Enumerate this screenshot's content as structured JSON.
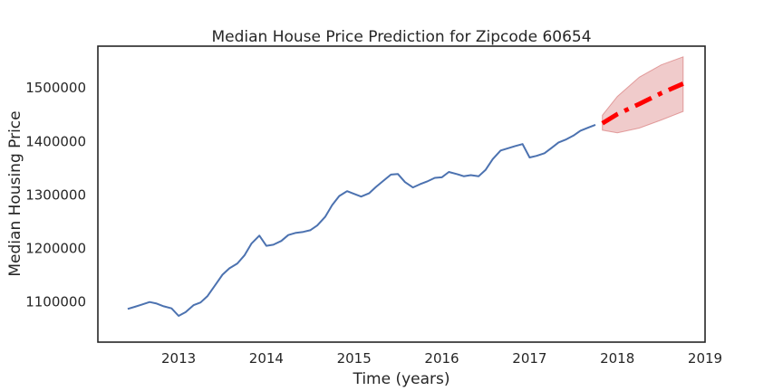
{
  "chart_data": {
    "type": "line",
    "title": "Median House Price Prediction for Zipcode 60654",
    "xlabel": "Time (years)",
    "ylabel": "Median Housing Price",
    "xlim": [
      2012.08,
      2019.0
    ],
    "ylim": [
      1025000,
      1578000
    ],
    "x_ticks": [
      {
        "value": 2013,
        "label": "2013"
      },
      {
        "value": 2014,
        "label": "2014"
      },
      {
        "value": 2015,
        "label": "2015"
      },
      {
        "value": 2016,
        "label": "2016"
      },
      {
        "value": 2017,
        "label": "2017"
      },
      {
        "value": 2018,
        "label": "2018"
      },
      {
        "value": 2019,
        "label": "2019"
      }
    ],
    "y_ticks": [
      {
        "value": 1100000,
        "label": "1100000"
      },
      {
        "value": 1200000,
        "label": "1200000"
      },
      {
        "value": 1300000,
        "label": "1300000"
      },
      {
        "value": 1400000,
        "label": "1400000"
      },
      {
        "value": 1500000,
        "label": "1500000"
      }
    ],
    "grid": false,
    "series": [
      {
        "role": "observed",
        "color": "#4c72b0",
        "style": "solid",
        "x": [
          2012.42,
          2012.5,
          2012.58,
          2012.67,
          2012.75,
          2012.83,
          2012.92,
          2013.0,
          2013.08,
          2013.17,
          2013.25,
          2013.33,
          2013.42,
          2013.5,
          2013.58,
          2013.67,
          2013.75,
          2013.83,
          2013.92,
          2014.0,
          2014.08,
          2014.17,
          2014.25,
          2014.33,
          2014.42,
          2014.5,
          2014.58,
          2014.67,
          2014.75,
          2014.83,
          2014.92,
          2015.0,
          2015.08,
          2015.17,
          2015.25,
          2015.33,
          2015.42,
          2015.5,
          2015.58,
          2015.67,
          2015.75,
          2015.83,
          2015.92,
          2016.0,
          2016.08,
          2016.17,
          2016.25,
          2016.33,
          2016.42,
          2016.5,
          2016.58,
          2016.67,
          2016.75,
          2016.83,
          2016.92,
          2017.0,
          2017.08,
          2017.17,
          2017.25,
          2017.33,
          2017.42,
          2017.5,
          2017.58,
          2017.67,
          2017.75
        ],
        "y": [
          1087000,
          1091000,
          1095000,
          1100000,
          1097000,
          1092000,
          1088000,
          1074000,
          1081000,
          1094000,
          1099000,
          1111000,
          1132000,
          1151000,
          1163000,
          1172000,
          1187000,
          1209000,
          1224000,
          1205000,
          1207000,
          1214000,
          1225000,
          1229000,
          1231000,
          1234000,
          1243000,
          1259000,
          1281000,
          1298000,
          1307000,
          1302000,
          1297000,
          1303000,
          1315000,
          1326000,
          1338000,
          1339000,
          1324000,
          1314000,
          1320000,
          1325000,
          1332000,
          1333000,
          1343000,
          1339000,
          1335000,
          1337000,
          1335000,
          1347000,
          1367000,
          1383000,
          1387000,
          1391000,
          1395000,
          1370000,
          1373000,
          1378000,
          1388000,
          1398000,
          1404000,
          1411000,
          1420000,
          1426000,
          1431000
        ]
      },
      {
        "role": "forecast",
        "color": "#ff0000",
        "style": "dashdot",
        "x": [
          2017.83,
          2018.0,
          2018.25,
          2018.5,
          2018.75
        ],
        "y": [
          1434000,
          1451000,
          1470000,
          1490000,
          1508000
        ],
        "ci_lower": [
          1421000,
          1416000,
          1425000,
          1440000,
          1456000
        ],
        "ci_upper": [
          1449000,
          1484000,
          1520000,
          1543000,
          1558000
        ],
        "ci_color": "#d46a6a"
      }
    ]
  }
}
